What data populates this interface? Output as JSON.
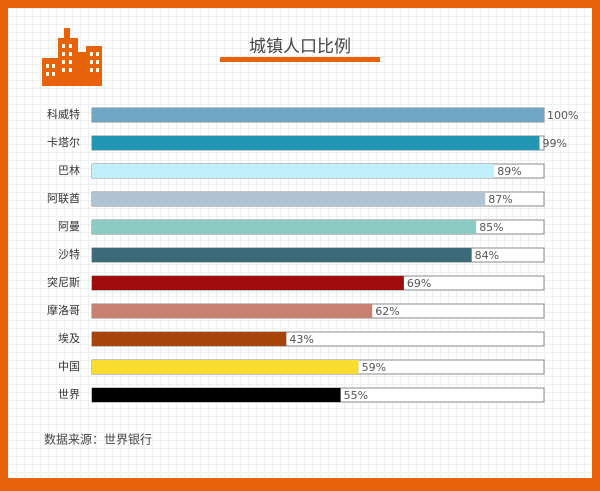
{
  "chart_data": {
    "type": "bar",
    "orientation": "horizontal",
    "title": "城镇人口比例",
    "categories": [
      "科威特",
      "卡塔尔",
      "巴林",
      "阿联酋",
      "阿曼",
      "沙特",
      "突尼斯",
      "摩洛哥",
      "埃及",
      "中国",
      "世界"
    ],
    "values": [
      100,
      99,
      89,
      87,
      85,
      84,
      69,
      62,
      43,
      59,
      55
    ],
    "value_labels": [
      "100%",
      "99%",
      "89%",
      "87%",
      "85%",
      "84%",
      "69%",
      "62%",
      "43%",
      "59%",
      "55%"
    ],
    "colors": [
      "#6fa7c5",
      "#2196b5",
      "#bff0fb",
      "#b1c4d4",
      "#8ccbc4",
      "#3b6b79",
      "#a00d0d",
      "#c98171",
      "#a84409",
      "#f8dc2f",
      "#000000"
    ],
    "xlim": [
      0,
      100
    ],
    "source": "数据来源：世界银行"
  }
}
